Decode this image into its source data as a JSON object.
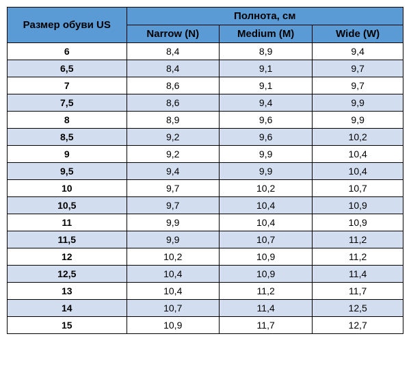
{
  "table": {
    "header_size": "Размер обуви US",
    "header_width_group": "Полнота, см",
    "columns": [
      "Narrow (N)",
      "Medium (M)",
      "Wide (W)"
    ],
    "rows": [
      {
        "size": "6",
        "n": "8,4",
        "m": "8,9",
        "w": "9,4"
      },
      {
        "size": "6,5",
        "n": "8,4",
        "m": "9,1",
        "w": "9,7"
      },
      {
        "size": "7",
        "n": "8,6",
        "m": "9,1",
        "w": "9,7"
      },
      {
        "size": "7,5",
        "n": "8,6",
        "m": "9,4",
        "w": "9,9"
      },
      {
        "size": "8",
        "n": "8,9",
        "m": "9,6",
        "w": "9,9"
      },
      {
        "size": "8,5",
        "n": "9,2",
        "m": "9,6",
        "w": "10,2"
      },
      {
        "size": "9",
        "n": "9,2",
        "m": "9,9",
        "w": "10,4"
      },
      {
        "size": "9,5",
        "n": "9,4",
        "m": "9,9",
        "w": "10,4"
      },
      {
        "size": "10",
        "n": "9,7",
        "m": "10,2",
        "w": "10,7"
      },
      {
        "size": "10,5",
        "n": "9,7",
        "m": "10,4",
        "w": "10,9"
      },
      {
        "size": "11",
        "n": "9,9",
        "m": "10,4",
        "w": "10,9"
      },
      {
        "size": "11,5",
        "n": "9,9",
        "m": "10,7",
        "w": "11,2"
      },
      {
        "size": "12",
        "n": "10,2",
        "m": "10,9",
        "w": "11,2"
      },
      {
        "size": "12,5",
        "n": "10,4",
        "m": "10,9",
        "w": "11,4"
      },
      {
        "size": "13",
        "n": "10,4",
        "m": "11,2",
        "w": "11,7"
      },
      {
        "size": "14",
        "n": "10,7",
        "m": "11,4",
        "w": "12,5"
      },
      {
        "size": "15",
        "n": "10,9",
        "m": "11,7",
        "w": "12,7"
      }
    ],
    "header_bg": "#5b9bd5",
    "row_odd_bg": "#ffffff",
    "row_even_bg": "#d2deef",
    "border_color": "#000000"
  }
}
